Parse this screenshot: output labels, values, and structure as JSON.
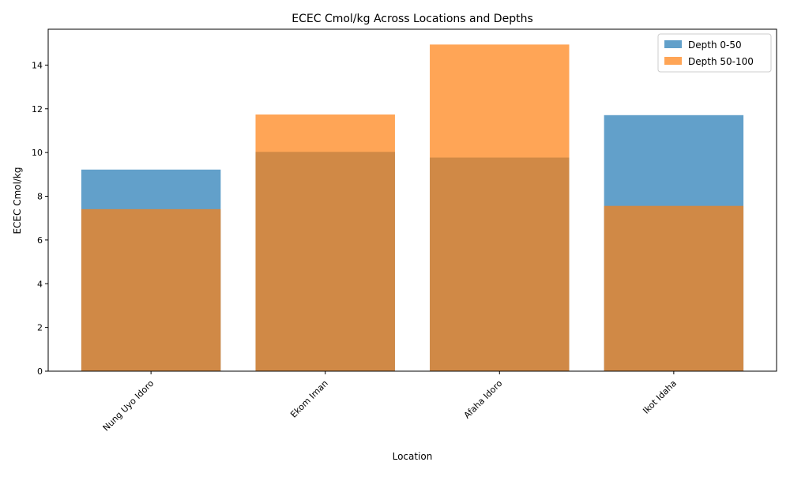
{
  "chart_data": {
    "type": "bar",
    "title": "ECEC Cmol/kg Across Locations and Depths",
    "xlabel": "Location",
    "ylabel": "ECEC Cmol/kg",
    "categories": [
      "Nung Uyo Idoro",
      "Ekom Iman",
      "Afaha Idoro",
      "Ikot Idaha"
    ],
    "series": [
      {
        "name": "Depth 0-50",
        "values": [
          9.22,
          10.03,
          9.77,
          11.71
        ],
        "color": "#1f77b4"
      },
      {
        "name": "Depth 50-100",
        "values": [
          7.41,
          11.74,
          14.94,
          7.56
        ],
        "color": "#ff7f0e"
      }
    ],
    "ylim": [
      0,
      15.64
    ],
    "yticks": [
      0,
      2,
      4,
      6,
      8,
      10,
      12,
      14
    ],
    "legend_position": "top-right",
    "bar_opacity": 0.7,
    "grid": false,
    "overlapping": true
  }
}
